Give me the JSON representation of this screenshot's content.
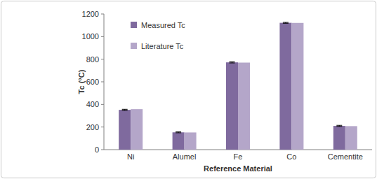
{
  "chart_data": {
    "type": "bar",
    "x_label": "Reference Material",
    "y_label": "Tc (°C)",
    "categories": [
      "Ni",
      "Alumel",
      "Fe",
      "Co",
      "Cementite"
    ],
    "series": [
      {
        "name": "Measured Tc",
        "color": "#7f6a9e",
        "values": [
          352,
          153,
          772,
          1122,
          210
        ],
        "errors": [
          5,
          4,
          5,
          4,
          5
        ]
      },
      {
        "name": "Literature Tc",
        "color": "#b4a6c9",
        "values": [
          358,
          152,
          770,
          1121,
          208
        ]
      }
    ],
    "ylim": [
      0,
      1200
    ],
    "yticks": [
      0,
      200,
      400,
      600,
      800,
      1000,
      1200
    ],
    "grid": false,
    "legend": "top-left"
  }
}
